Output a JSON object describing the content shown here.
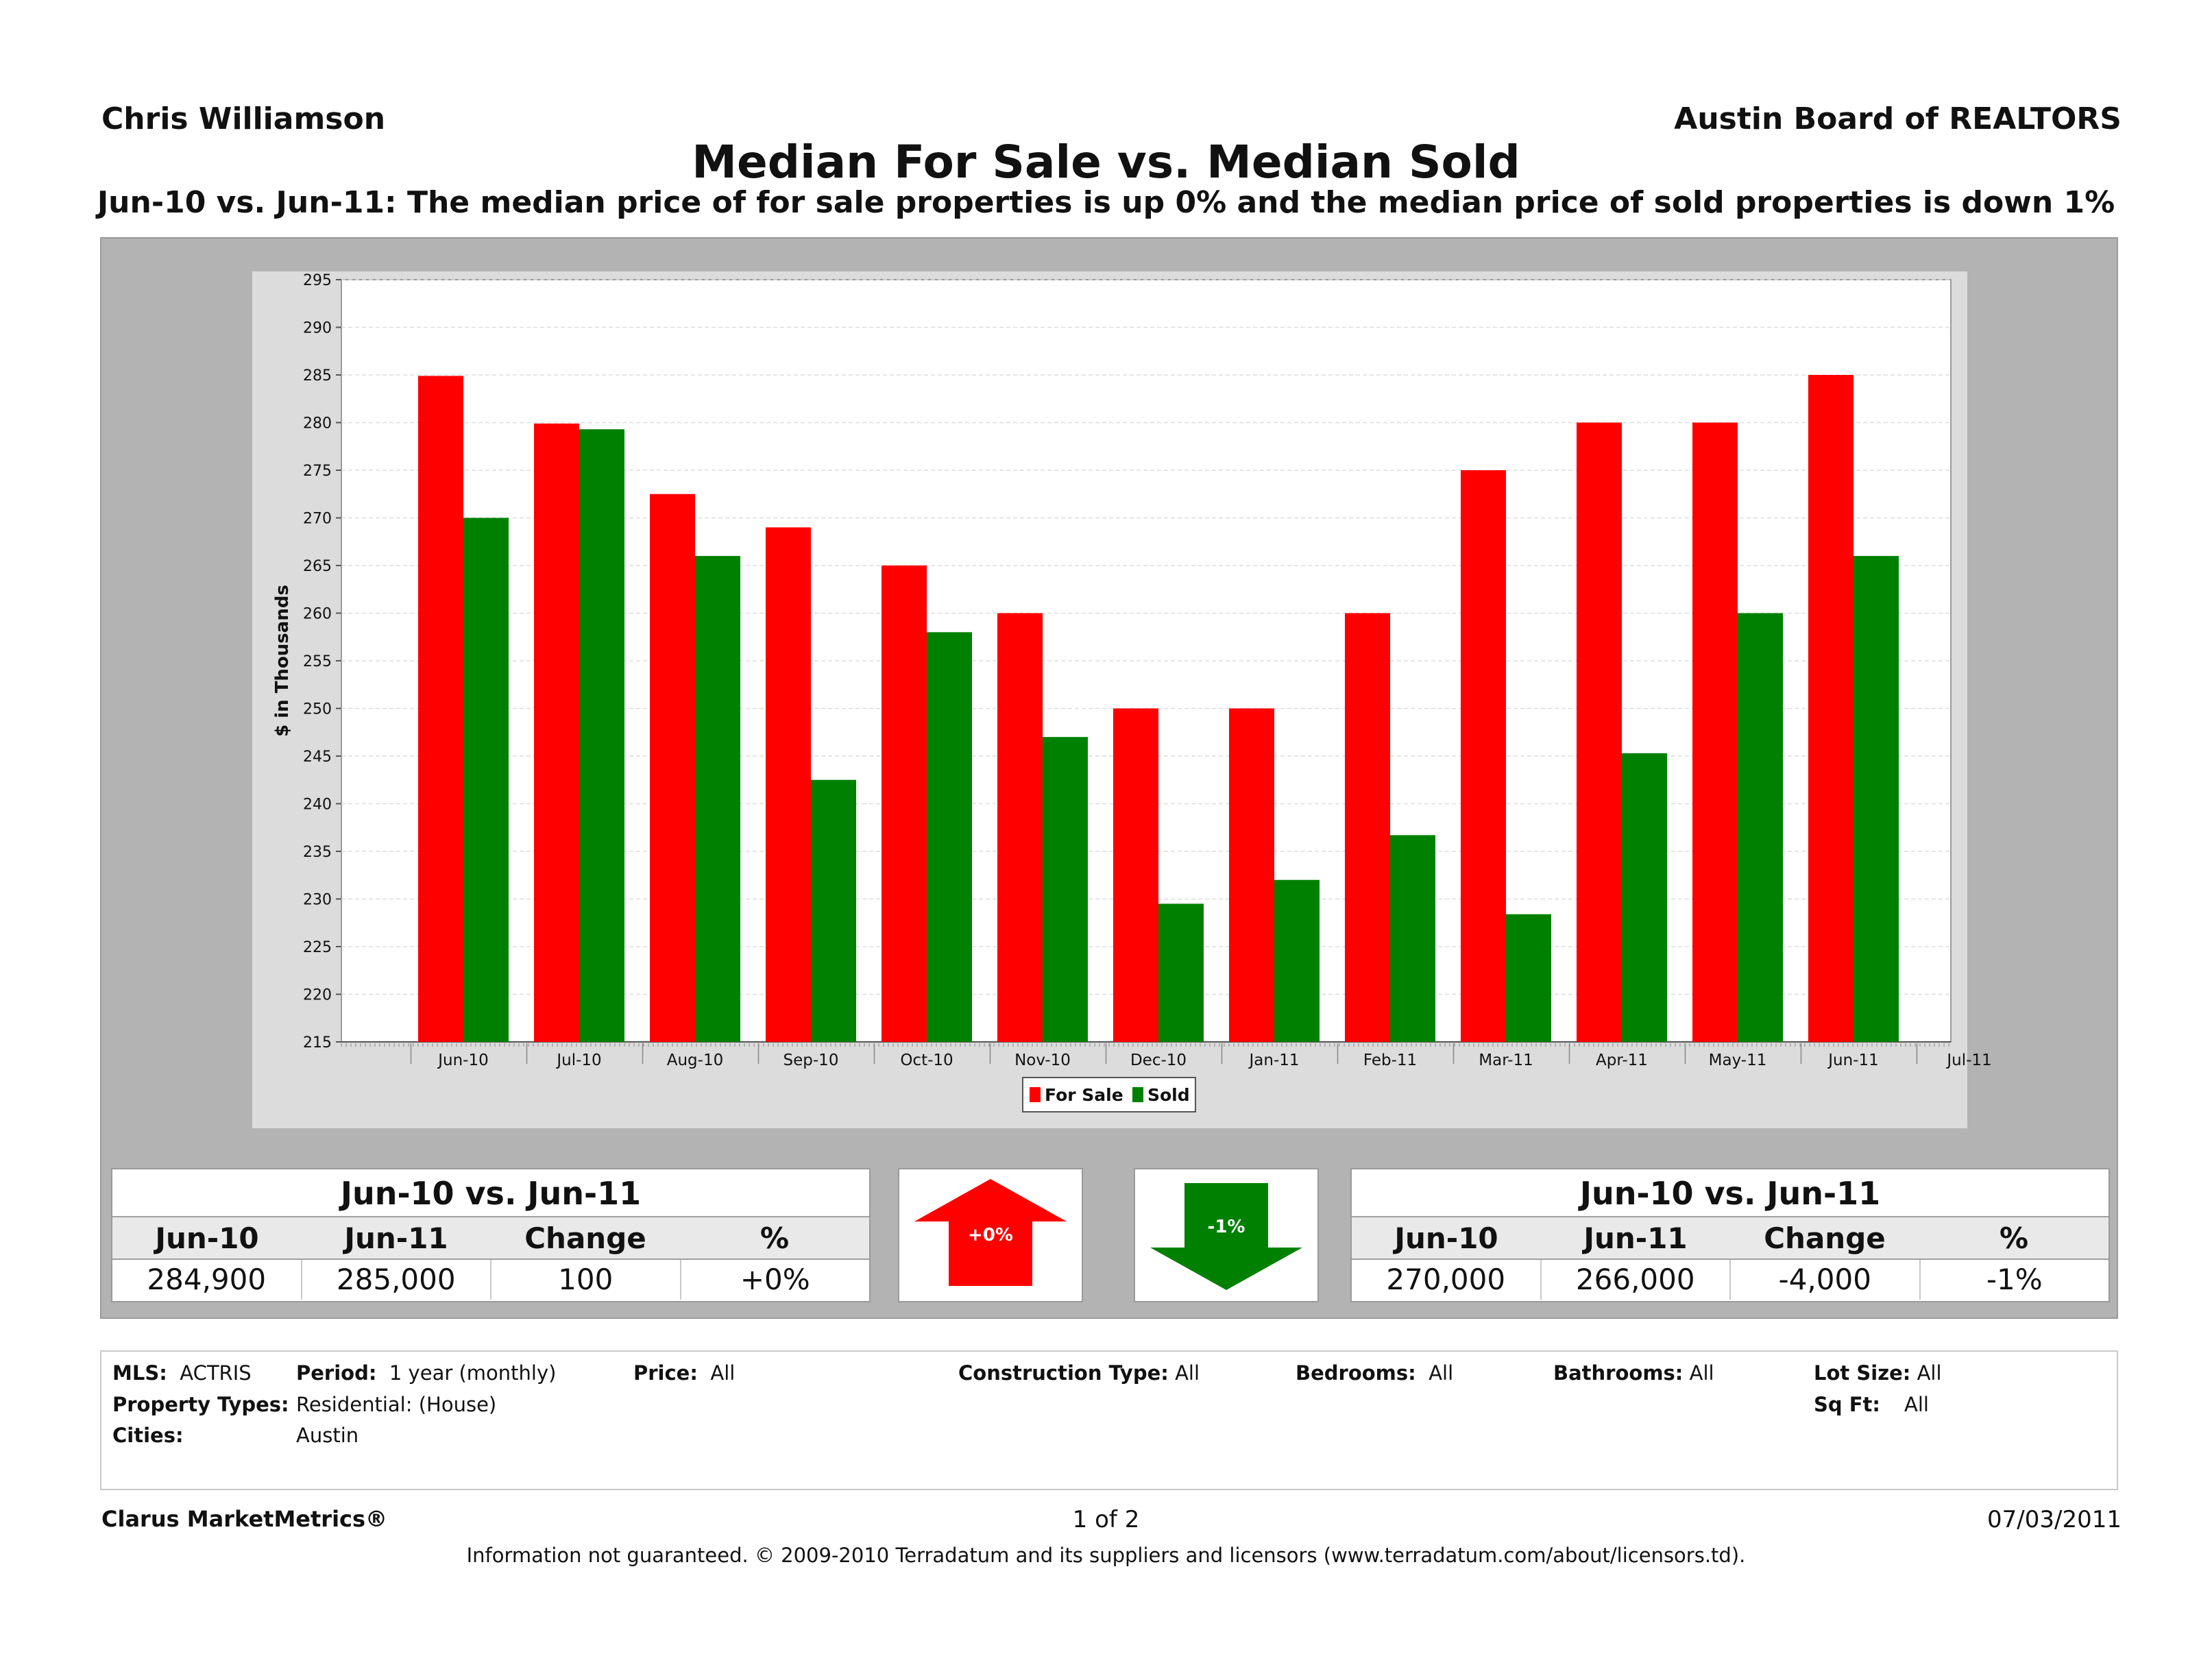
{
  "header": {
    "agent": "Chris Williamson",
    "board": "Austin Board of REALTORS",
    "title": "Median For Sale vs. Median Sold",
    "subtitle": "Jun-10 vs. Jun-11:  The median price of for sale properties is up 0% and the median price of sold properties is down 1%"
  },
  "chart_data": {
    "type": "bar",
    "ylabel": "$ in Thousands",
    "ylim": [
      215,
      295
    ],
    "yticks": [
      295,
      290,
      285,
      280,
      275,
      270,
      265,
      260,
      255,
      250,
      245,
      240,
      235,
      230,
      225,
      220,
      215
    ],
    "categories": [
      "Jun-10",
      "Jul-10",
      "Aug-10",
      "Sep-10",
      "Oct-10",
      "Nov-10",
      "Dec-10",
      "Jan-11",
      "Feb-11",
      "Mar-11",
      "Apr-11",
      "May-11",
      "Jun-11",
      "Jul-11"
    ],
    "series": [
      {
        "name": "For Sale",
        "color": "#ff0000",
        "values": [
          284.9,
          279.9,
          272.5,
          269.0,
          265.0,
          260.0,
          250.0,
          250.0,
          260.0,
          275.0,
          280.0,
          280.0,
          285.0,
          null
        ]
      },
      {
        "name": "Sold",
        "color": "#008000",
        "values": [
          270.0,
          279.3,
          266.0,
          242.5,
          258.0,
          247.0,
          229.5,
          232.0,
          236.7,
          228.4,
          245.3,
          260.0,
          266.0,
          null
        ]
      }
    ],
    "legend": "bottom-center",
    "grid": true
  },
  "for_sale_stats": {
    "heading": "Jun-10 vs. Jun-11",
    "columns": [
      "Jun-10",
      "Jun-11",
      "Change",
      "%"
    ],
    "values": [
      "284,900",
      "285,000",
      "100",
      "+0%"
    ],
    "indicator": "+0%",
    "indicator_color": "#ff0000"
  },
  "sold_stats": {
    "heading": "Jun-10 vs. Jun-11",
    "columns": [
      "Jun-10",
      "Jun-11",
      "Change",
      "%"
    ],
    "values": [
      "270,000",
      "266,000",
      "-4,000",
      "-1%"
    ],
    "indicator": "-1%",
    "indicator_color": "#008000"
  },
  "criteria": {
    "mls_label": "MLS:",
    "mls": "ACTRIS",
    "period_label": "Period:",
    "period": "1 year (monthly)",
    "price_label": "Price:",
    "price": "All",
    "construction_label": "Construction Type:",
    "construction": "All",
    "bedrooms_label": "Bedrooms:",
    "bedrooms": "All",
    "bathrooms_label": "Bathrooms:",
    "bathrooms": "All",
    "lot_label": "Lot Size:",
    "lot": "All",
    "types_label": "Property Types:",
    "types": "Residential: (House)",
    "sqft_label": "Sq Ft:",
    "sqft": "All",
    "cities_label": "Cities:",
    "cities": "Austin"
  },
  "footer": {
    "brand": "Clarus MarketMetrics®",
    "page": "1 of 2",
    "date": "07/03/2011",
    "disclaimer": "Information not guaranteed.  © 2009-2010 Terradatum and its suppliers and licensors (www.terradatum.com/about/licensors.td)."
  }
}
